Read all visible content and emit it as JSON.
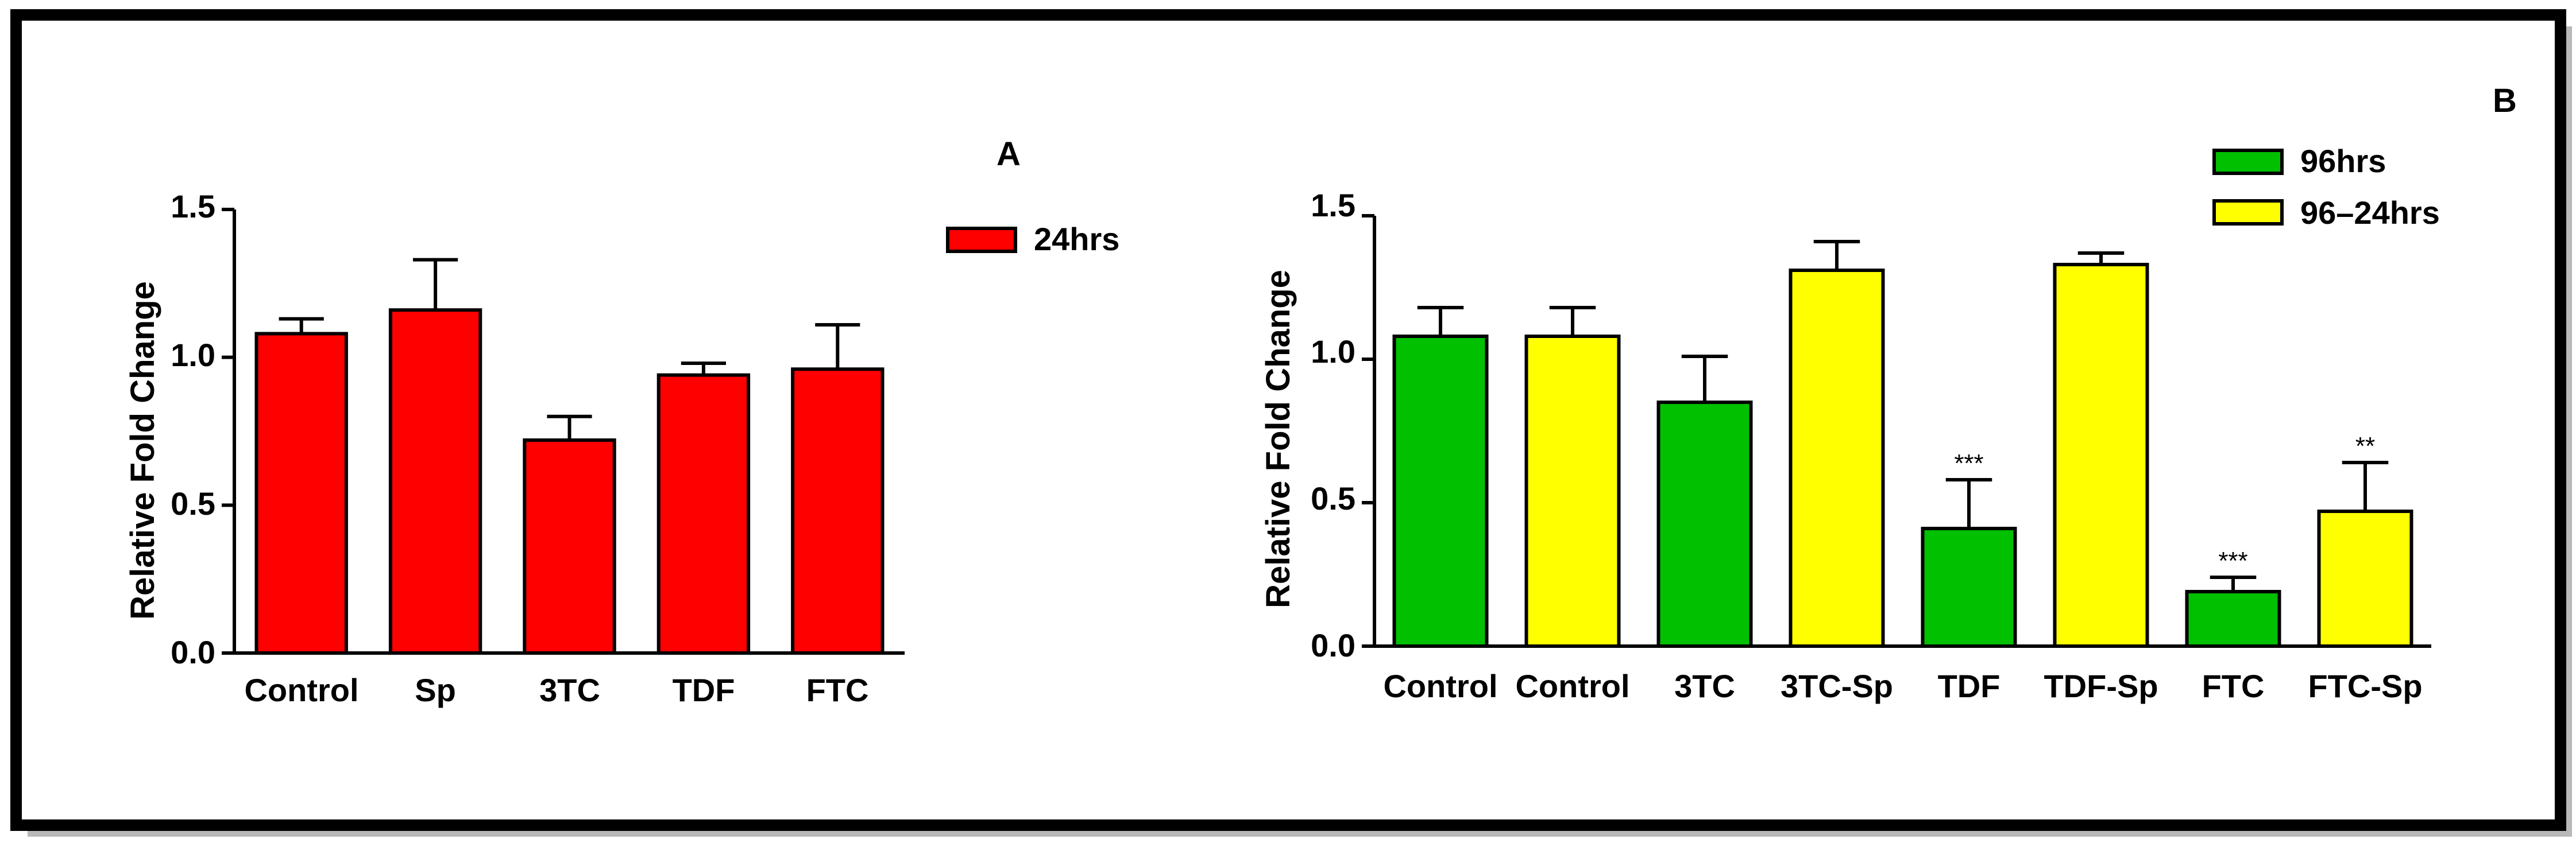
{
  "chart_data": [
    {
      "type": "bar",
      "panel_label": "A",
      "ylabel": "Relative Fold Change",
      "ylim": [
        0,
        1.5
      ],
      "yticks": [
        "0.0",
        "0.5",
        "1.0",
        "1.5"
      ],
      "categories": [
        "Control",
        "Sp",
        "3TC",
        "TDF",
        "FTC"
      ],
      "series": [
        {
          "name": "24hrs",
          "color": "#ff0000",
          "values": [
            1.08,
            1.16,
            0.72,
            0.94,
            0.96
          ],
          "errors": [
            0.05,
            0.17,
            0.08,
            0.04,
            0.15
          ]
        }
      ],
      "legend": {
        "position": "top-right",
        "labels": [
          "24hrs"
        ],
        "colors": [
          "#ff0000"
        ]
      }
    },
    {
      "type": "bar",
      "panel_label": "B",
      "ylabel": "Relative Fold Change",
      "ylim": [
        0,
        1.5
      ],
      "yticks": [
        "0.0",
        "0.5",
        "1.0",
        "1.5"
      ],
      "categories": [
        "Control",
        "Control",
        "3TC",
        "3TC-Sp",
        "TDF",
        "TDF-Sp",
        "FTC",
        "FTC-Sp"
      ],
      "values": [
        1.08,
        1.08,
        0.85,
        1.31,
        0.41,
        1.33,
        0.19,
        0.47
      ],
      "errors": [
        0.1,
        0.1,
        0.16,
        0.1,
        0.17,
        0.04,
        0.05,
        0.17
      ],
      "bar_series": [
        "96hrs",
        "96–24hrs",
        "96hrs",
        "96–24hrs",
        "96hrs",
        "96–24hrs",
        "96hrs",
        "96–24hrs"
      ],
      "annotations": [
        "",
        "",
        "",
        "",
        "***",
        "",
        "***",
        "**"
      ],
      "legend": {
        "position": "top-right",
        "labels": [
          "96hrs",
          "96–24hrs"
        ],
        "colors": [
          "#00c000",
          "#ffff00"
        ]
      }
    }
  ]
}
